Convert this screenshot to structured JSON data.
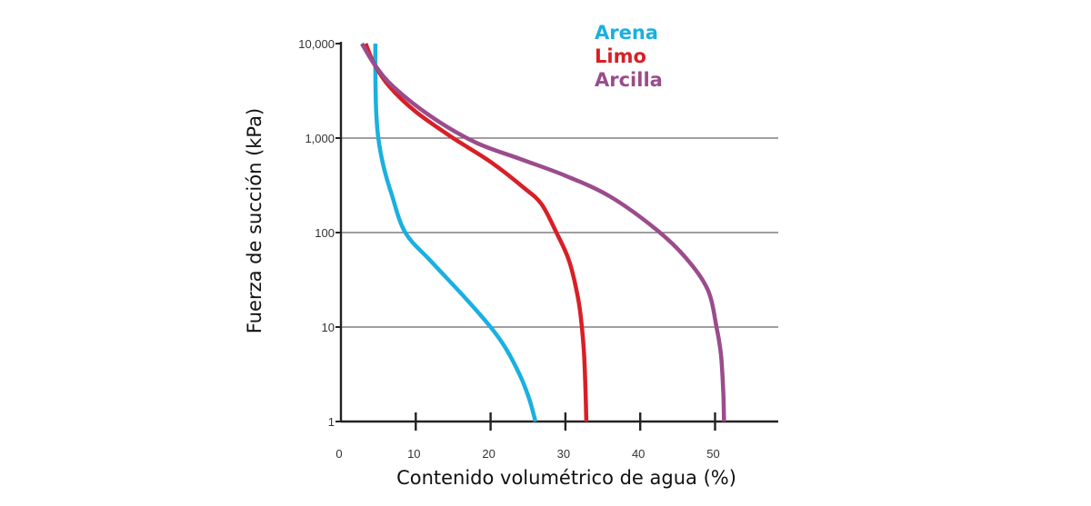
{
  "chart_data": {
    "type": "line",
    "title": "",
    "xlabel": "Contenido volumétrico de agua (%)",
    "ylabel": "Fuerza de succión (kPa)",
    "xlim": [
      0,
      58
    ],
    "ylim": [
      1,
      10000
    ],
    "y_scale": "log",
    "x_ticks": [
      0,
      10,
      20,
      30,
      40,
      50
    ],
    "x_tick_labels": [
      "0",
      "10",
      "20",
      "30",
      "40",
      "50"
    ],
    "y_ticks": [
      1,
      10,
      100,
      1000,
      10000
    ],
    "y_tick_labels": [
      "1",
      "10",
      "100",
      "1,000",
      "10,000"
    ],
    "grid": "horizontal",
    "legend_position": "top-right",
    "series": [
      {
        "name": "Arena",
        "color": "#1ab0e0",
        "points": [
          [
            4.6,
            10000
          ],
          [
            4.6,
            5000
          ],
          [
            4.7,
            2000
          ],
          [
            5.0,
            1000
          ],
          [
            5.7,
            500
          ],
          [
            6.8,
            250
          ],
          [
            8.6,
            100
          ],
          [
            12,
            50
          ],
          [
            16.7,
            20
          ],
          [
            20,
            10
          ],
          [
            22,
            6
          ],
          [
            24,
            3
          ],
          [
            25.2,
            1.7
          ],
          [
            26,
            1
          ]
        ]
      },
      {
        "name": "Limo",
        "color": "#d91f26",
        "points": [
          [
            3.3,
            10000
          ],
          [
            4.5,
            6000
          ],
          [
            6.5,
            3500
          ],
          [
            10,
            1900
          ],
          [
            15,
            1000
          ],
          [
            20,
            560
          ],
          [
            24.4,
            300
          ],
          [
            26.8,
            200
          ],
          [
            28.8,
            100
          ],
          [
            30.5,
            50
          ],
          [
            31.7,
            20
          ],
          [
            32.2,
            10
          ],
          [
            32.5,
            5
          ],
          [
            32.7,
            2
          ],
          [
            32.8,
            1
          ]
        ]
      },
      {
        "name": "Arcilla",
        "color": "#9a4c8c",
        "points": [
          [
            2.8,
            10000
          ],
          [
            4.5,
            6000
          ],
          [
            7,
            3500
          ],
          [
            12,
            1700
          ],
          [
            18,
            900
          ],
          [
            24,
            600
          ],
          [
            30,
            400
          ],
          [
            36,
            240
          ],
          [
            42,
            110
          ],
          [
            46,
            55
          ],
          [
            49,
            25
          ],
          [
            50.2,
            10
          ],
          [
            50.8,
            5
          ],
          [
            51.1,
            2
          ],
          [
            51.2,
            1
          ]
        ]
      }
    ]
  }
}
